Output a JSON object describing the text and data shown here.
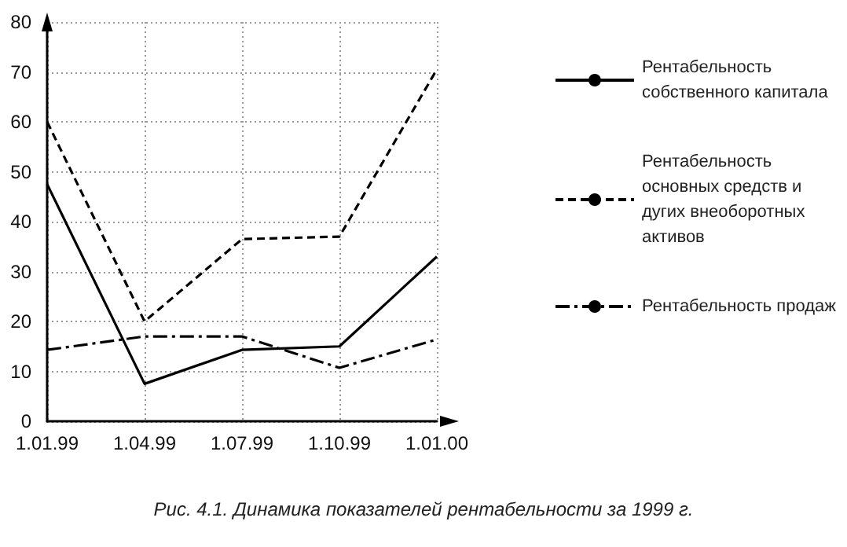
{
  "chart_data": {
    "type": "line",
    "categories": [
      "1.01.99",
      "1.04.99",
      "1.07.99",
      "1.10.99",
      "1.01.00"
    ],
    "series": [
      {
        "name": "Рентабельность собственного капитала",
        "color": "#000000",
        "line_style": "solid",
        "values": [
          47.5,
          7.5,
          14.3,
          15,
          33
        ]
      },
      {
        "name": "Рентабельность основных средств и дугих внеоборотных активов",
        "color": "#000000",
        "line_style": "dashed",
        "values": [
          60,
          20,
          36.5,
          37,
          70.5
        ]
      },
      {
        "name": "Рентабельность продаж",
        "color": "#000000",
        "line_style": "dashdot",
        "values": [
          14.3,
          17,
          17,
          10.7,
          16.4
        ]
      }
    ],
    "ylim": [
      0,
      80
    ],
    "yticks": [
      0,
      10,
      20,
      30,
      40,
      50,
      60,
      70,
      80
    ],
    "grid": true,
    "legend": "right",
    "marker": "none",
    "annotations": [
      "Рис. 4.1. Динамика показателей рентабельности за 1999 г."
    ]
  }
}
